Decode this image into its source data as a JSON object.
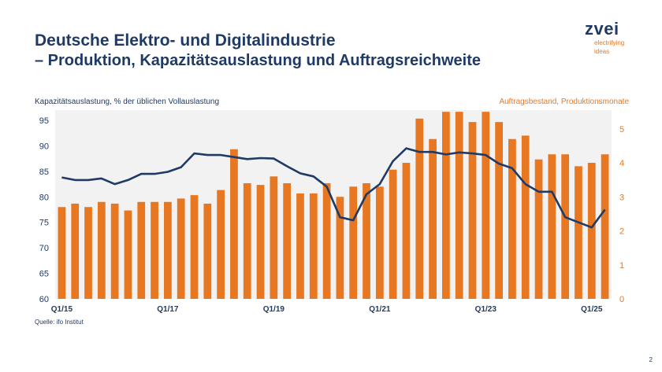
{
  "header": {
    "title": "Deutsche Elektro- und Digitalindustrie",
    "subtitle": "– Produktion, Kapazitätsauslastung und Auftragsreichweite"
  },
  "logo": {
    "word": "zvei",
    "tagline_1": "electrifying",
    "tagline_2": "ideas"
  },
  "footer": {
    "source": "Quelle: ifo Institut",
    "page_number": "2"
  },
  "colors": {
    "navy": "#1f3a64",
    "orange": "#e87722",
    "plot_bg": "#f2f2f2"
  },
  "chart_data": {
    "type": "bar",
    "ylabel": "Kapazitätsauslastung, % der üblichen Vollauslastung",
    "ylabel_right": "Auftragsbestand, Produktionsmonate",
    "ylim": [
      60,
      97
    ],
    "yticks": [
      "60",
      "65",
      "70",
      "75",
      "80",
      "85",
      "90",
      "95"
    ],
    "y2lim": [
      0,
      5.55
    ],
    "y2ticks": [
      "0",
      "1",
      "2",
      "3",
      "4",
      "5"
    ],
    "grid": false,
    "x_tick_labels": [
      {
        "label": "Q1/15",
        "index": 0
      },
      {
        "label": "Q1/17",
        "index": 8
      },
      {
        "label": "Q1/19",
        "index": 16
      },
      {
        "label": "Q1/21",
        "index": 24
      },
      {
        "label": "Q1/23",
        "index": 32
      },
      {
        "label": "Q1/25",
        "index": 40
      }
    ],
    "series": [
      {
        "type": "bar",
        "axis": "right",
        "color": "#e87722",
        "values": [
          2.7,
          2.8,
          2.7,
          2.85,
          2.8,
          2.6,
          2.85,
          2.85,
          2.85,
          2.95,
          3.05,
          2.8,
          3.2,
          4.4,
          3.4,
          3.35,
          3.6,
          3.4,
          3.1,
          3.1,
          3.4,
          3.0,
          3.3,
          3.4,
          3.3,
          3.8,
          4.0,
          5.3,
          4.7,
          5.5,
          5.5,
          5.2,
          5.5,
          5.2,
          4.7,
          4.8,
          4.1,
          4.25,
          4.25,
          3.9,
          4.0,
          4.25
        ]
      },
      {
        "type": "line",
        "axis": "left",
        "color": "#1f3a64",
        "values": [
          83.8,
          83.3,
          83.3,
          83.6,
          82.5,
          83.3,
          84.5,
          84.5,
          84.9,
          85.8,
          88.5,
          88.2,
          88.2,
          87.8,
          87.4,
          87.6,
          87.5,
          86.0,
          84.6,
          84.0,
          82.0,
          76.0,
          75.4,
          80.5,
          82.5,
          87.0,
          89.5,
          88.8,
          88.8,
          88.3,
          88.7,
          88.5,
          88.2,
          86.5,
          85.6,
          82.5,
          81.0,
          81.0,
          76.0,
          75.0,
          74.0,
          77.5
        ]
      }
    ]
  }
}
